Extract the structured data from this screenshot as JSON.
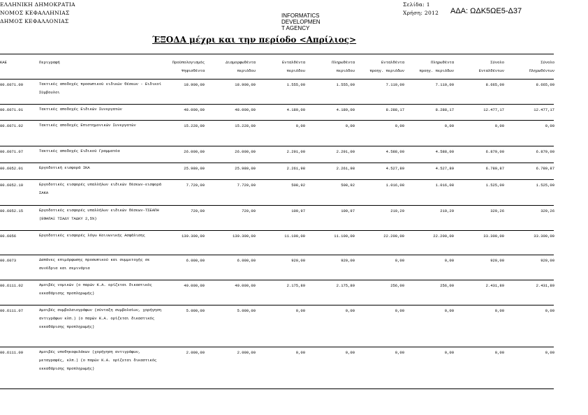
{
  "header": {
    "line1": "ΕΛΛΗΝΙΚΗ ΔΗΜΟΚΡΑΤΙΑ",
    "line2": "ΝΟΜΟΣ ΚΕΦΑΛΛΗΝΙΑΣ",
    "line3": "ΔΗΜΟΣ ΚΕΦΑΛΛΟΝΙΑΣ",
    "page_label": "Σελίδα:",
    "page": "1",
    "year_label": "Χρήση:",
    "year": "2012",
    "ada": "ΑΔΑ: ΩΔΚ5ΩΕ5-Δ37",
    "stamp": [
      "INFORMATICS",
      "DEVELOPMEN",
      "T AGENCY"
    ],
    "title": "ΈΞΟΔΑ μέχρι και την περίοδο <Απρίλιος>"
  },
  "columns": [
    [
      "ΚΑΕ",
      ""
    ],
    [
      "Περιγραφή",
      ""
    ],
    [
      "Προϋπολογισμός",
      "Ψηφισθέντα"
    ],
    [
      "Διαμορφωθέντα",
      "περιόδου"
    ],
    [
      "Ενταλθέντα",
      "περιόδου"
    ],
    [
      "Πληρωθέντα",
      "περιόδου"
    ],
    [
      "Ενταλθέντα",
      "προηγ. περιόδων"
    ],
    [
      "Πληρωθέντα",
      "προηγ. περιόδων"
    ],
    [
      "Σύνολο",
      "Ενταλθέντων"
    ],
    [
      "Σύνολο",
      "Πληρωθέντων"
    ]
  ],
  "rows": [
    {
      "code": "00.6071.00",
      "desc": "Τακτικές αποδοχές προσωπικού ειδικών θέσεων - Ειδικοί Σύμβουλοι",
      "v": [
        "18.900,00",
        "18.900,00",
        "1.555,00",
        "1.555,00",
        "7.110,00",
        "7.110,00",
        "8.665,00",
        "8.665,00"
      ]
    },
    {
      "code": "00.6071.01",
      "desc": "Τακτικές αποδοχές Ειδικών Συνεργατών",
      "v": [
        "48.000,00",
        "48.000,00",
        "4.189,00",
        "4.189,00",
        "8.288,17",
        "8.288,17",
        "12.477,17",
        "12.477,17"
      ]
    },
    {
      "code": "00.6071.02",
      "desc": "Τακτικές αποδοχές Επιστημονικών Συνεργατών",
      "v": [
        "15.228,00",
        "15.228,00",
        "0,00",
        "0,00",
        "0,00",
        "0,00",
        "0,00",
        "0,00"
      ]
    },
    {
      "code": "00.6071.07",
      "desc": "Τακτικές αποδοχές Ειδικού Γραμματέα",
      "v": [
        "26.000,00",
        "26.000,00",
        "2.291,00",
        "2.291,00",
        "4.588,00",
        "4.588,00",
        "6.879,00",
        "6.879,00"
      ]
    },
    {
      "code": "00.6052.01",
      "desc": "Εργοδοτική εισφορά ΙΚΑ",
      "v": [
        "25.980,00",
        "25.980,00",
        "2.261,98",
        "2.261,98",
        "4.527,89",
        "4.527,89",
        "6.789,87",
        "6.789,87"
      ]
    },
    {
      "code": "00.6052.10",
      "desc": "Εργοδοτικές εισφορές υπαλλήλων ειδικών θέσεων-εισφορά ΣΑΚΑ",
      "v": [
        "7.720,00",
        "7.720,00",
        "508,92",
        "508,92",
        "1.016,08",
        "1.016,08",
        "1.525,00",
        "1.525,00"
      ]
    },
    {
      "code": "00.6052.15",
      "desc": "Εργοδοτικές εισφορές υπαλλήλων ειδικών θέσεων-ΤΣΕΑΠΗ (ΕΦΑΠΑΞ ΤΣΑΔΥ ΤΑΔΚΥ 2,5%)",
      "v": [
        "720,00",
        "720,00",
        "109,97",
        "109,97",
        "219,29",
        "219,29",
        "329,26",
        "329,26"
      ]
    },
    {
      "code": "00.6056",
      "desc": "Εργοδοτικές εισφορές λόγω Κοινωνικής Ασφάλισης",
      "v": [
        "130.300,00",
        "130.300,00",
        "11.100,00",
        "11.100,00",
        "22.200,00",
        "22.200,00",
        "33.300,00",
        "33.300,00"
      ]
    },
    {
      "code": "00.6073",
      "desc": "Δαπάνες επιμόρφωσης προσωπικού και συμμετοχής σε συνέδρια και σεμινάρια",
      "v": [
        "6.000,00",
        "6.000,00",
        "920,00",
        "920,00",
        "0,00",
        "0,00",
        "920,00",
        "920,00"
      ]
    },
    {
      "code": "00.6111.02",
      "desc": "Αμοιβές νομικών (ο παρών Κ.Α. ορίζεται δικαστικός εκκαθάρισης προπληρωμής)",
      "v": [
        "40.000,00",
        "40.000,00",
        "2.175,89",
        "2.175,89",
        "256,00",
        "256,00",
        "2.431,89",
        "2.431,89"
      ]
    },
    {
      "code": "00.6111.07",
      "desc": "Αμοιβές συμβολαιογράφων (σύνταξη συμβολαίων, χορήγηση αντιγράφων κλπ.) (ο παρών Κ.Α. ορίζεται δικαστικός εκκαθάρισης προπληρωμής)",
      "v": [
        "5.000,00",
        "5.000,00",
        "0,00",
        "0,00",
        "0,00",
        "0,00",
        "0,00",
        "0,00"
      ]
    },
    {
      "code": "00.6111.09",
      "desc": "Αμοιβές υποθηκοφυλάκων (χορήγηση αντιγράφων, μεταγραφές, κλπ.) (ο παρών Κ.Α. ορίζεται δικαστικός εκκαθάρισης προπληρωμής)",
      "v": [
        "2.000,00",
        "2.000,00",
        "0,00",
        "0,00",
        "0,00",
        "0,00",
        "0,00",
        "0,00"
      ]
    }
  ]
}
